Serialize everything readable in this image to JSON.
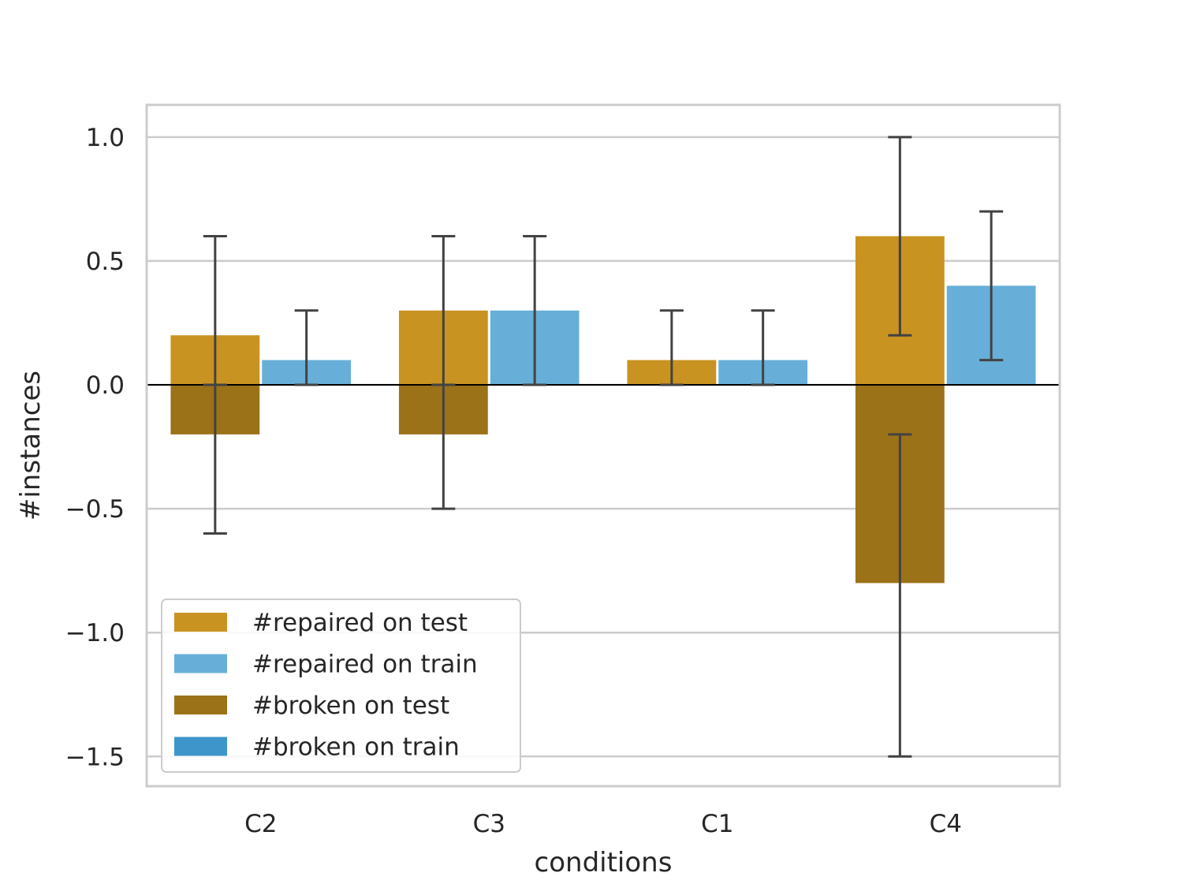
{
  "chart_data": {
    "type": "bar",
    "title": "",
    "xlabel": "conditions",
    "ylabel": "#instances",
    "categories": [
      "C2",
      "C3",
      "C1",
      "C4"
    ],
    "ylim": [
      -1.62,
      1.13
    ],
    "yticks": [
      1.0,
      0.5,
      0.0,
      -0.5,
      -1.0,
      -1.5
    ],
    "ytick_labels": [
      "1.0",
      "0.5",
      "0.0",
      "−0.5",
      "−1.0",
      "−1.5"
    ],
    "grid": true,
    "legend_position": "lower-left",
    "series": [
      {
        "name": "#repaired on test",
        "color": "#c99321",
        "slot": 0,
        "values": [
          0.2,
          0.3,
          0.1,
          0.6
        ],
        "err_low": [
          0.0,
          0.0,
          0.0,
          0.2
        ],
        "err_high": [
          0.6,
          0.6,
          0.3,
          1.0
        ]
      },
      {
        "name": "#repaired on train",
        "color": "#67afd8",
        "slot": 1,
        "values": [
          0.1,
          0.3,
          0.1,
          0.4
        ],
        "err_low": [
          0.0,
          0.0,
          0.0,
          0.1
        ],
        "err_high": [
          0.3,
          0.6,
          0.3,
          0.7
        ]
      },
      {
        "name": "#broken on test",
        "color": "#9c7218",
        "slot": 0,
        "values": [
          -0.2,
          -0.2,
          0.0,
          -0.8
        ],
        "err_low": [
          -0.6,
          -0.5,
          0.0,
          -1.5
        ],
        "err_high": [
          0.0,
          0.0,
          0.0,
          -0.2
        ]
      },
      {
        "name": "#broken on train",
        "color": "#3d95c9",
        "slot": 1,
        "values": [
          0.0,
          0.0,
          0.0,
          0.0
        ],
        "err_low": [
          0.0,
          0.0,
          0.0,
          0.0
        ],
        "err_high": [
          0.0,
          0.0,
          0.0,
          0.0
        ]
      }
    ]
  }
}
